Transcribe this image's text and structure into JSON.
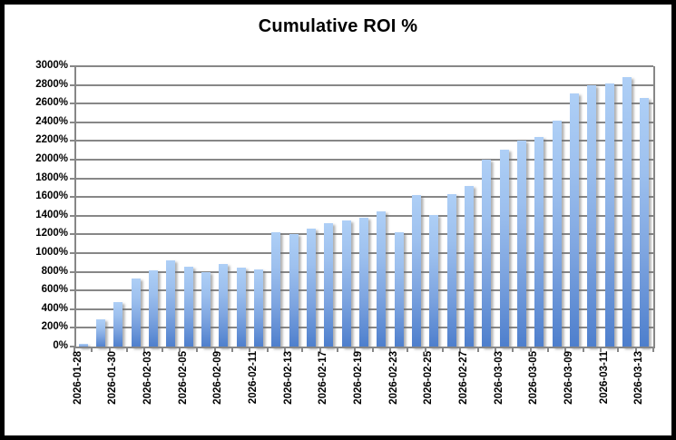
{
  "window": {
    "background_color": "#ffffff",
    "frame_border_color": "#000000"
  },
  "chart_data": {
    "type": "bar",
    "title": "Cumulative ROI %",
    "xlabel": "",
    "ylabel": "",
    "ylim": [
      0,
      3000
    ],
    "y_step": 200,
    "grid": true,
    "legend_position": "none",
    "y_tick_labels": [
      "0%",
      "200%",
      "400%",
      "600%",
      "800%",
      "1000%",
      "1200%",
      "1400%",
      "1600%",
      "1800%",
      "2000%",
      "2200%",
      "2400%",
      "2600%",
      "2800%",
      "3000%"
    ],
    "x_tick_labels": [
      "2026-01-28",
      "2026-01-30",
      "2026-02-03",
      "2026-02-05",
      "2026-02-09",
      "2026-02-11",
      "2026-02-13",
      "2026-02-17",
      "2026-02-19",
      "2026-02-23",
      "2026-02-25",
      "2026-02-27",
      "2026-03-03",
      "2026-03-05",
      "2026-03-09",
      "2026-03-11",
      "2026-03-13"
    ],
    "x_label_every_nth_bar": 2,
    "bar_count": 33,
    "values": [
      30,
      290,
      480,
      730,
      820,
      920,
      855,
      800,
      880,
      840,
      825,
      1225,
      1200,
      1260,
      1325,
      1350,
      1375,
      1450,
      1225,
      1620,
      1405,
      1635,
      1720,
      2000,
      2110,
      2205,
      2240,
      2415,
      2705,
      2800,
      2820,
      2885,
      2665
    ],
    "bar_gradient_top": "#aecff6",
    "bar_gradient_bottom": "#4d7ecc",
    "grid_color": "#878787",
    "text_color": "#000000"
  }
}
